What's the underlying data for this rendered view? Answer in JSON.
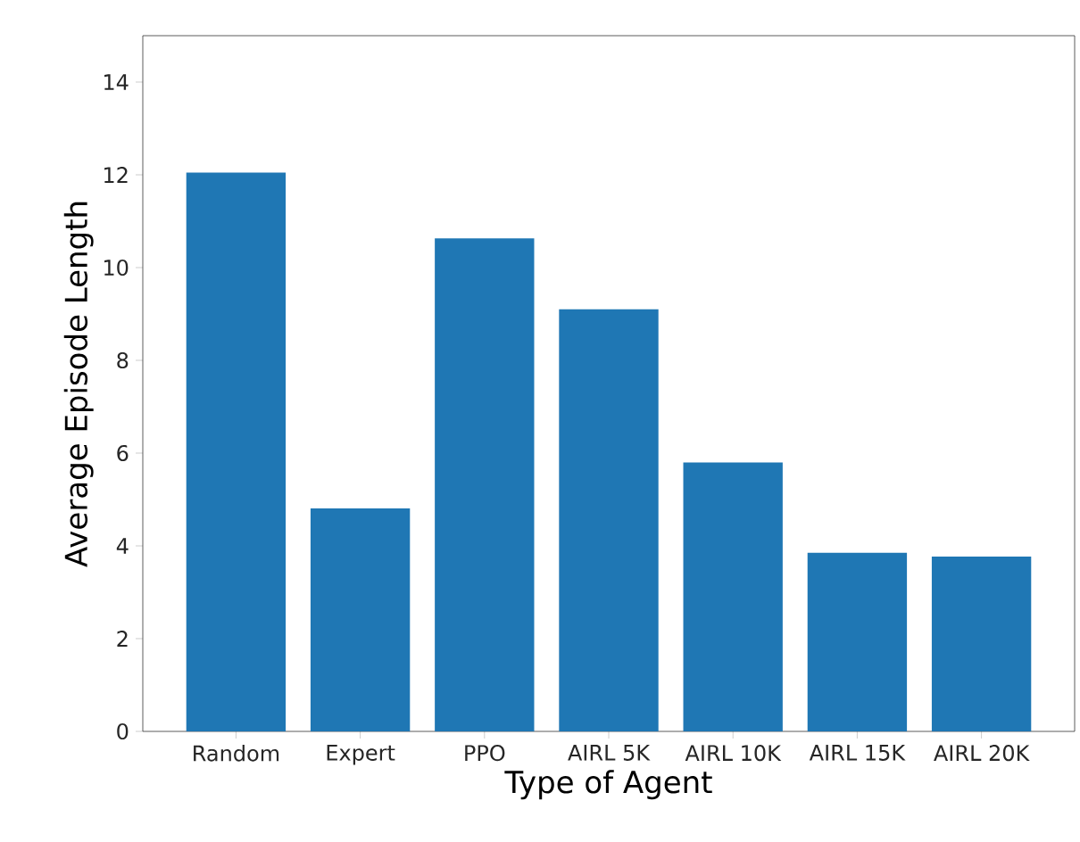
{
  "chart_data": {
    "type": "bar",
    "xlabel": "Type of Agent",
    "ylabel": "Average Episode Length",
    "categories": [
      "Random",
      "Expert",
      "PPO",
      "AIRL 5K",
      "AIRL 10K",
      "AIRL 15K",
      "AIRL 20K"
    ],
    "values": [
      12.05,
      4.81,
      10.63,
      9.1,
      5.8,
      3.85,
      3.77
    ],
    "color": "#1f77b4",
    "ylim": [
      0,
      15
    ],
    "yticks": [
      0,
      2,
      4,
      6,
      8,
      10,
      12,
      14
    ]
  }
}
